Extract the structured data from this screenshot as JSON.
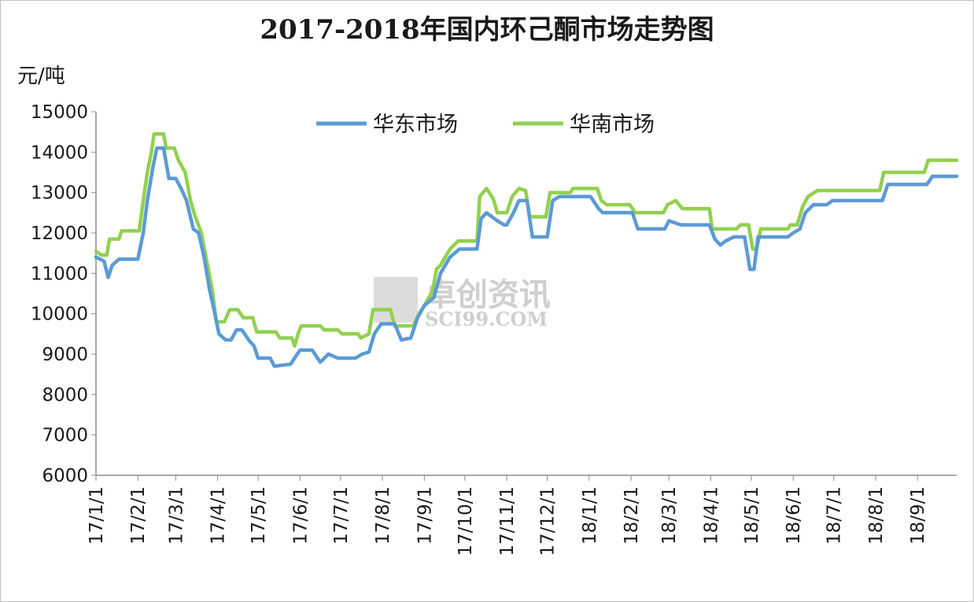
{
  "chart_data": {
    "type": "line",
    "title": "2017-2018年国内环己酮市场走势图",
    "ylabel": "元/吨",
    "xlabel": "",
    "ylim": [
      6000,
      15000
    ],
    "yticks": [
      6000,
      7000,
      8000,
      9000,
      10000,
      11000,
      12000,
      13000,
      14000,
      15000
    ],
    "categories": [
      "17/1/1",
      "17/2/1",
      "17/3/1",
      "17/4/1",
      "17/5/1",
      "17/6/1",
      "17/7/1",
      "17/8/1",
      "17/9/1",
      "17/10/1",
      "17/11/1",
      "17/12/1",
      "18/1/1",
      "18/2/1",
      "18/3/1",
      "18/4/1",
      "18/5/1",
      "18/6/1",
      "18/7/1",
      "18/8/1",
      "18/9/1"
    ],
    "x_start": "2017-01-01",
    "x_end": "2018-09-30",
    "legend_position": "top-center",
    "grid": false,
    "series": [
      {
        "name": "华东市场",
        "color": "#5b9bd5",
        "points": [
          [
            "2017-01-01",
            11400
          ],
          [
            "2017-01-07",
            11300
          ],
          [
            "2017-01-10",
            10900
          ],
          [
            "2017-01-13",
            11200
          ],
          [
            "2017-01-18",
            11350
          ],
          [
            "2017-02-01",
            11350
          ],
          [
            "2017-02-05",
            12000
          ],
          [
            "2017-02-08",
            12800
          ],
          [
            "2017-02-12",
            13600
          ],
          [
            "2017-02-15",
            14100
          ],
          [
            "2017-02-20",
            14100
          ],
          [
            "2017-02-24",
            13350
          ],
          [
            "2017-03-01",
            13350
          ],
          [
            "2017-03-05",
            13100
          ],
          [
            "2017-03-09",
            12800
          ],
          [
            "2017-03-14",
            12100
          ],
          [
            "2017-03-18",
            12000
          ],
          [
            "2017-03-22",
            11400
          ],
          [
            "2017-03-26",
            10600
          ],
          [
            "2017-03-30",
            10000
          ],
          [
            "2017-04-02",
            9500
          ],
          [
            "2017-04-07",
            9350
          ],
          [
            "2017-04-11",
            9350
          ],
          [
            "2017-04-15",
            9600
          ],
          [
            "2017-04-19",
            9600
          ],
          [
            "2017-04-24",
            9350
          ],
          [
            "2017-04-28",
            9200
          ],
          [
            "2017-05-01",
            8900
          ],
          [
            "2017-05-10",
            8900
          ],
          [
            "2017-05-13",
            8700
          ],
          [
            "2017-05-25",
            8750
          ],
          [
            "2017-05-30",
            9000
          ],
          [
            "2017-06-01",
            9100
          ],
          [
            "2017-06-10",
            9100
          ],
          [
            "2017-06-16",
            8800
          ],
          [
            "2017-06-22",
            9000
          ],
          [
            "2017-06-29",
            8900
          ],
          [
            "2017-07-12",
            8900
          ],
          [
            "2017-07-17",
            9000
          ],
          [
            "2017-07-22",
            9050
          ],
          [
            "2017-07-26",
            9500
          ],
          [
            "2017-07-31",
            9750
          ],
          [
            "2017-08-10",
            9750
          ],
          [
            "2017-08-15",
            9350
          ],
          [
            "2017-08-22",
            9400
          ],
          [
            "2017-08-27",
            9900
          ],
          [
            "2017-09-01",
            10200
          ],
          [
            "2017-09-08",
            10400
          ],
          [
            "2017-09-13",
            11000
          ],
          [
            "2017-09-20",
            11400
          ],
          [
            "2017-09-27",
            11600
          ],
          [
            "2017-10-10",
            11600
          ],
          [
            "2017-10-13",
            12350
          ],
          [
            "2017-10-17",
            12500
          ],
          [
            "2017-10-25",
            12300
          ],
          [
            "2017-10-30",
            12200
          ],
          [
            "2017-11-01",
            12200
          ],
          [
            "2017-11-06",
            12500
          ],
          [
            "2017-11-10",
            12800
          ],
          [
            "2017-11-16",
            12800
          ],
          [
            "2017-11-20",
            11900
          ],
          [
            "2017-12-01",
            11900
          ],
          [
            "2017-12-05",
            12800
          ],
          [
            "2017-12-10",
            12900
          ],
          [
            "2018-01-02",
            12900
          ],
          [
            "2018-01-08",
            12600
          ],
          [
            "2018-01-11",
            12500
          ],
          [
            "2018-02-02",
            12500
          ],
          [
            "2018-02-06",
            12100
          ],
          [
            "2018-02-26",
            12100
          ],
          [
            "2018-03-01",
            12300
          ],
          [
            "2018-03-10",
            12200
          ],
          [
            "2018-03-31",
            12200
          ],
          [
            "2018-04-04",
            11850
          ],
          [
            "2018-04-08",
            11700
          ],
          [
            "2018-04-12",
            11800
          ],
          [
            "2018-04-18",
            11900
          ],
          [
            "2018-04-26",
            11900
          ],
          [
            "2018-04-30",
            11100
          ],
          [
            "2018-05-03",
            11100
          ],
          [
            "2018-05-06",
            11900
          ],
          [
            "2018-05-28",
            11900
          ],
          [
            "2018-06-01",
            12000
          ],
          [
            "2018-06-06",
            12100
          ],
          [
            "2018-06-10",
            12500
          ],
          [
            "2018-06-16",
            12700
          ],
          [
            "2018-06-26",
            12700
          ],
          [
            "2018-06-30",
            12800
          ],
          [
            "2018-08-06",
            12800
          ],
          [
            "2018-08-10",
            13200
          ],
          [
            "2018-09-08",
            13200
          ],
          [
            "2018-09-12",
            13400
          ],
          [
            "2018-09-30",
            13400
          ]
        ]
      },
      {
        "name": "华南市场",
        "color": "#92d050",
        "points": [
          [
            "2017-01-01",
            11550
          ],
          [
            "2017-01-05",
            11450
          ],
          [
            "2017-01-09",
            11450
          ],
          [
            "2017-01-11",
            11850
          ],
          [
            "2017-01-18",
            11850
          ],
          [
            "2017-01-20",
            12050
          ],
          [
            "2017-02-02",
            12050
          ],
          [
            "2017-02-05",
            12800
          ],
          [
            "2017-02-08",
            13500
          ],
          [
            "2017-02-11",
            14000
          ],
          [
            "2017-02-13",
            14450
          ],
          [
            "2017-02-20",
            14450
          ],
          [
            "2017-02-22",
            14100
          ],
          [
            "2017-02-28",
            14100
          ],
          [
            "2017-03-03",
            13800
          ],
          [
            "2017-03-08",
            13500
          ],
          [
            "2017-03-12",
            12800
          ],
          [
            "2017-03-15",
            12450
          ],
          [
            "2017-03-20",
            12000
          ],
          [
            "2017-03-24",
            11300
          ],
          [
            "2017-03-28",
            10600
          ],
          [
            "2017-03-31",
            9800
          ],
          [
            "2017-04-06",
            9800
          ],
          [
            "2017-04-10",
            10100
          ],
          [
            "2017-04-16",
            10100
          ],
          [
            "2017-04-20",
            9900
          ],
          [
            "2017-04-27",
            9900
          ],
          [
            "2017-04-30",
            9550
          ],
          [
            "2017-05-14",
            9550
          ],
          [
            "2017-05-17",
            9400
          ],
          [
            "2017-05-26",
            9400
          ],
          [
            "2017-05-28",
            9200
          ],
          [
            "2017-05-31",
            9550
          ],
          [
            "2017-06-02",
            9700
          ],
          [
            "2017-06-16",
            9700
          ],
          [
            "2017-06-19",
            9600
          ],
          [
            "2017-06-29",
            9600
          ],
          [
            "2017-07-02",
            9500
          ],
          [
            "2017-07-14",
            9500
          ],
          [
            "2017-07-16",
            9400
          ],
          [
            "2017-07-22",
            9500
          ],
          [
            "2017-07-25",
            10100
          ],
          [
            "2017-08-07",
            10100
          ],
          [
            "2017-08-10",
            9700
          ],
          [
            "2017-08-24",
            9700
          ],
          [
            "2017-08-28",
            10000
          ],
          [
            "2017-09-01",
            10200
          ],
          [
            "2017-09-07",
            10550
          ],
          [
            "2017-09-10",
            11100
          ],
          [
            "2017-09-13",
            11200
          ],
          [
            "2017-09-20",
            11600
          ],
          [
            "2017-09-26",
            11800
          ],
          [
            "2017-10-10",
            11800
          ],
          [
            "2017-10-12",
            12900
          ],
          [
            "2017-10-17",
            13100
          ],
          [
            "2017-10-22",
            12850
          ],
          [
            "2017-10-25",
            12500
          ],
          [
            "2017-11-01",
            12500
          ],
          [
            "2017-11-05",
            12900
          ],
          [
            "2017-11-10",
            13100
          ],
          [
            "2017-11-15",
            13050
          ],
          [
            "2017-11-18",
            12400
          ],
          [
            "2017-11-30",
            12400
          ],
          [
            "2017-12-03",
            13000
          ],
          [
            "2017-12-18",
            13000
          ],
          [
            "2017-12-20",
            13100
          ],
          [
            "2018-01-07",
            13100
          ],
          [
            "2018-01-10",
            12800
          ],
          [
            "2018-01-14",
            12700
          ],
          [
            "2018-01-31",
            12700
          ],
          [
            "2018-02-04",
            12500
          ],
          [
            "2018-02-25",
            12500
          ],
          [
            "2018-02-28",
            12700
          ],
          [
            "2018-03-06",
            12800
          ],
          [
            "2018-03-11",
            12600
          ],
          [
            "2018-03-31",
            12600
          ],
          [
            "2018-04-02",
            12100
          ],
          [
            "2018-04-20",
            12100
          ],
          [
            "2018-04-23",
            12200
          ],
          [
            "2018-04-29",
            12200
          ],
          [
            "2018-05-02",
            11600
          ],
          [
            "2018-05-05",
            11600
          ],
          [
            "2018-05-08",
            12100
          ],
          [
            "2018-05-28",
            12100
          ],
          [
            "2018-05-30",
            12200
          ],
          [
            "2018-06-04",
            12200
          ],
          [
            "2018-06-08",
            12650
          ],
          [
            "2018-06-12",
            12900
          ],
          [
            "2018-06-19",
            13050
          ],
          [
            "2018-08-04",
            13050
          ],
          [
            "2018-08-07",
            13500
          ],
          [
            "2018-09-06",
            13500
          ],
          [
            "2018-09-09",
            13800
          ],
          [
            "2018-09-30",
            13800
          ]
        ]
      }
    ],
    "watermark": {
      "cn": "卓创资讯",
      "en": "SCI99.COM"
    }
  }
}
